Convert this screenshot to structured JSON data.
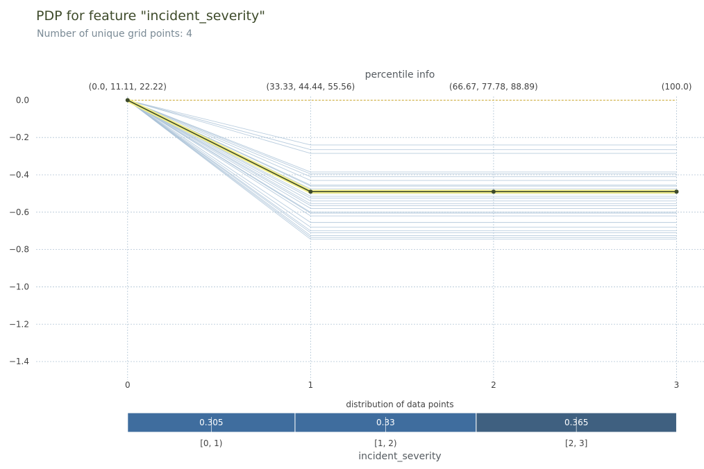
{
  "chart_data": {
    "type": "line",
    "title": "PDP for feature \"incident_severity\"",
    "subtitle": "Number of unique grid points: 4",
    "x": [
      0,
      1,
      2,
      3
    ],
    "xlabel": "incident_severity",
    "x_ticks": [
      "0",
      "1",
      "2",
      "3"
    ],
    "xlim": [
      -0.5,
      3.15
    ],
    "ylim": [
      -1.5,
      0.02
    ],
    "y_ticks": [
      0.0,
      -0.2,
      -0.4,
      -0.6,
      -0.8,
      -1.0,
      -1.2,
      -1.4
    ],
    "y_tick_labels": [
      "0.0",
      "−0.2",
      "−0.4",
      "−0.6",
      "−0.8",
      "−1.0",
      "−1.2",
      "−1.4"
    ],
    "grid": true,
    "top_axis": {
      "label": "percentile info",
      "tick_labels": [
        "(0.0, 11.11, 22.22)",
        "(33.33, 44.44, 55.56)",
        "(66.67, 77.78, 88.89)",
        "(100.0)"
      ]
    },
    "reference_line": 0.0,
    "average_line": [
      0.0,
      -0.49,
      -0.49,
      -0.49
    ],
    "ice_lines": [
      -0.24,
      -0.265,
      -0.285,
      -0.385,
      -0.395,
      -0.41,
      -0.43,
      -0.455,
      -0.46,
      -0.475,
      -0.49,
      -0.5,
      -0.515,
      -0.525,
      -0.54,
      -0.555,
      -0.565,
      -0.58,
      -0.6,
      -0.605,
      -0.62,
      -0.655,
      -0.68,
      -0.7,
      -0.71,
      -0.725,
      -0.735,
      -0.745
    ],
    "distribution": {
      "title": "distribution of data points",
      "bins": [
        "[0, 1)",
        "[1, 2)",
        "[2, 3]"
      ],
      "values": [
        0.305,
        0.33,
        0.365
      ],
      "value_labels": [
        "0.305",
        "0.33",
        "0.365"
      ]
    },
    "colors": {
      "average": "#3d4a2a",
      "average_halo": "#f4f08a",
      "ice": "#a6bfd6",
      "bar": "#3f6d9e",
      "bar_dark": "#3f6080",
      "grid": "#b0c4d4",
      "reference": "#c9a227"
    }
  }
}
